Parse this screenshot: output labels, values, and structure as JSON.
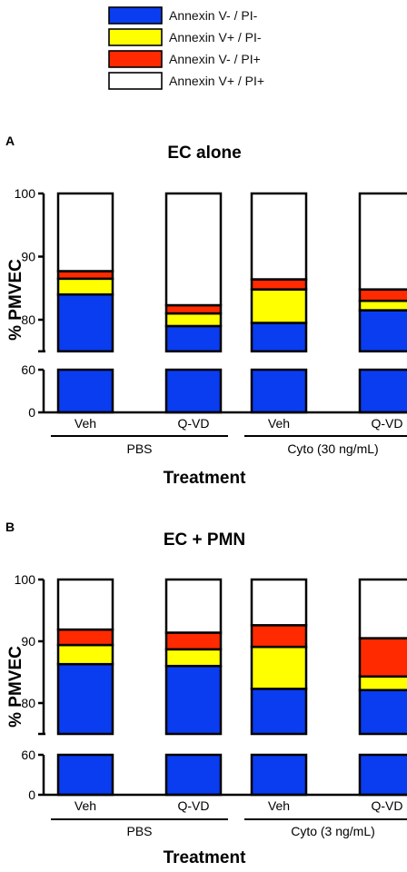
{
  "legend": [
    {
      "label": "Annexin V- / PI-",
      "color": "#0a3cf0"
    },
    {
      "label": "Annexin V+ / PI-",
      "color": "#ffff00"
    },
    {
      "label": "Annexin V- / PI+",
      "color": "#ff2a00"
    },
    {
      "label": "Annexin V+ / PI+",
      "color": "#ffffff"
    }
  ],
  "chart_data": [
    {
      "type": "bar",
      "stacked": true,
      "panel_label": "A",
      "title": "EC alone",
      "ylabel": "% PMVEC",
      "xlabel": "Treatment",
      "axis_break": {
        "lower": [
          0,
          60
        ],
        "upper": [
          75,
          100
        ]
      },
      "yticks_lower": [
        "0",
        "60"
      ],
      "yticks_upper": [
        "80",
        "90",
        "100"
      ],
      "categories": [
        "Veh",
        "Q-VD",
        "Veh",
        "Q-VD"
      ],
      "groups": [
        {
          "label": "PBS",
          "span": [
            0,
            1
          ]
        },
        {
          "label": "Cyto (30 ng/mL)",
          "span": [
            2,
            3
          ]
        }
      ],
      "series": [
        {
          "name": "Annexin V- / PI-",
          "values": [
            84.0,
            79.0,
            79.5,
            81.5
          ]
        },
        {
          "name": "Annexin V+ / PI-",
          "values": [
            2.5,
            2.0,
            5.3,
            1.5
          ]
        },
        {
          "name": "Annexin V- / PI+",
          "values": [
            1.2,
            1.3,
            1.6,
            1.8
          ]
        },
        {
          "name": "Annexin V+ / PI+",
          "values": [
            12.3,
            17.7,
            13.6,
            15.2
          ]
        }
      ]
    },
    {
      "type": "bar",
      "stacked": true,
      "panel_label": "B",
      "title": "EC + PMN",
      "ylabel": "% PMVEC",
      "xlabel": "Treatment",
      "axis_break": {
        "lower": [
          0,
          60
        ],
        "upper": [
          75,
          100
        ]
      },
      "yticks_lower": [
        "0",
        "60"
      ],
      "yticks_upper": [
        "80",
        "90",
        "100"
      ],
      "categories": [
        "Veh",
        "Q-VD",
        "Veh",
        "Q-VD"
      ],
      "groups": [
        {
          "label": "PBS",
          "span": [
            0,
            1
          ]
        },
        {
          "label": "Cyto (3 ng/mL)",
          "span": [
            2,
            3
          ]
        }
      ],
      "series": [
        {
          "name": "Annexin V- / PI-",
          "values": [
            86.3,
            86.0,
            82.3,
            82.1
          ]
        },
        {
          "name": "Annexin V+ / PI-",
          "values": [
            3.1,
            2.7,
            6.8,
            2.2
          ]
        },
        {
          "name": "Annexin V- / PI+",
          "values": [
            2.5,
            2.7,
            3.5,
            6.2
          ]
        },
        {
          "name": "Annexin V+ / PI+",
          "values": [
            8.1,
            8.6,
            7.4,
            9.5
          ]
        }
      ]
    }
  ]
}
